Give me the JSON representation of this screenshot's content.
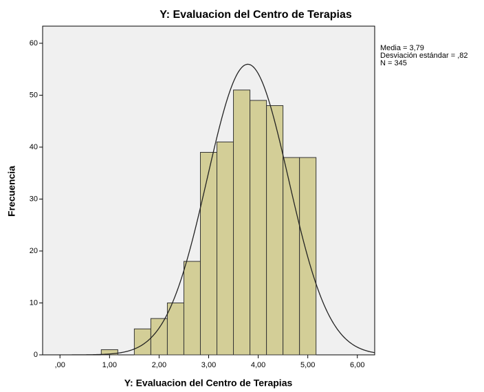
{
  "chart_data": {
    "type": "histogram",
    "title": "Y: Evaluacion del Centro de Terapias",
    "x_label": "Y: Evaluacion del Centro de Terapias",
    "y_label": "Frecuencia",
    "bins": [
      0.8333,
      1.1667,
      1.5,
      1.8333,
      2.1667,
      2.5,
      2.8333,
      3.1667,
      3.5,
      3.8333,
      4.1667,
      4.5,
      4.8333,
      5.1667
    ],
    "counts": [
      1,
      0,
      5,
      7,
      10,
      18,
      39,
      41,
      51,
      49,
      48,
      38,
      38
    ],
    "color": "#d3ce97",
    "xlim": [
      -0.35,
      6.35
    ],
    "ylim": [
      0,
      63.3
    ],
    "xticks": [
      {
        "value": 0,
        "label": ",00"
      },
      {
        "value": 1,
        "label": "1,00"
      },
      {
        "value": 2,
        "label": "2,00"
      },
      {
        "value": 3,
        "label": "3,00"
      },
      {
        "value": 4,
        "label": "4,00"
      },
      {
        "value": 5,
        "label": "5,00"
      },
      {
        "value": 6,
        "label": "6,00"
      }
    ],
    "yticks": [
      0,
      10,
      20,
      30,
      40,
      50,
      60
    ],
    "stats": {
      "mean": 3.79,
      "sd": 0.82,
      "n": 345,
      "labels": [
        "Media = 3,79",
        "Desviación estándar = ,82",
        "N = 345"
      ]
    }
  }
}
